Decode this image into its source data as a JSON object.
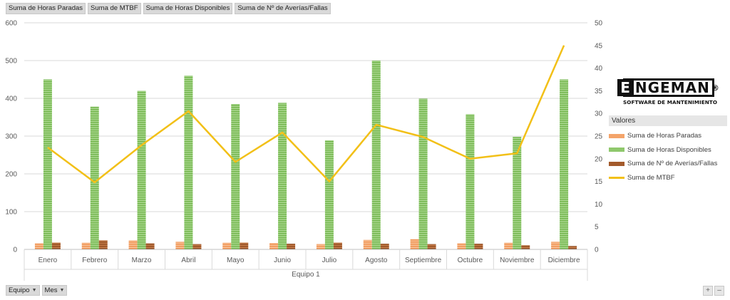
{
  "field_buttons": [
    "Suma de Horas Paradas",
    "Suma de MTBF",
    "Suma de Horas Disponibles",
    "Suma de Nº de Averías/Fallas"
  ],
  "logo": {
    "name": "ENGEMAN",
    "subtitle": "SOFTWARE DE MANTENIMIENTO"
  },
  "legend": {
    "title": "Valores",
    "items": [
      {
        "label": "Suma de Horas Paradas",
        "color": "#f4a46a",
        "kind": "bar"
      },
      {
        "label": "Suma de Horas Disponibles",
        "color": "#8fc86c",
        "kind": "bar"
      },
      {
        "label": "Suma de Nº de Averías/Fallas",
        "color": "#a35a2b",
        "kind": "bar"
      },
      {
        "label": "Suma de MTBF",
        "color": "#f2c018",
        "kind": "line"
      }
    ]
  },
  "bottom": {
    "filter1": "Equipo",
    "filter2": "Mes",
    "zoom_in": "+",
    "zoom_out": "–"
  },
  "chart_data": {
    "type": "bar",
    "categories": [
      "Enero",
      "Febrero",
      "Marzo",
      "Abril",
      "Mayo",
      "Junio",
      "Julio",
      "Agosto",
      "Septiembre",
      "Octubre",
      "Noviembre",
      "Diciembre"
    ],
    "xlabel": "Equipo 1",
    "ylim": [
      0,
      600
    ],
    "y_ticks": [
      0,
      100,
      200,
      300,
      400,
      500,
      600
    ],
    "y2lim": [
      0,
      50
    ],
    "y2_ticks": [
      0,
      5,
      10,
      15,
      20,
      25,
      30,
      35,
      40,
      45,
      50
    ],
    "grid": true,
    "legend_position": "right",
    "series": [
      {
        "name": "Suma de Horas Paradas",
        "axis": "left",
        "kind": "bar",
        "color": "#f4a46a",
        "values": [
          16,
          18,
          24,
          20,
          18,
          17,
          14,
          25,
          27,
          16,
          18,
          20
        ]
      },
      {
        "name": "Suma de Horas Disponibles",
        "axis": "left",
        "kind": "bar",
        "color": "#8fc86c",
        "values": [
          450,
          378,
          420,
          460,
          385,
          388,
          289,
          500,
          399,
          358,
          298,
          450
        ]
      },
      {
        "name": "Suma de Nº de Averías/Fallas",
        "axis": "left",
        "kind": "bar",
        "color": "#a35a2b",
        "values": [
          18,
          24,
          16,
          14,
          18,
          15,
          18,
          15,
          14,
          15,
          11,
          9
        ]
      },
      {
        "name": "Suma de MTBF",
        "axis": "right",
        "kind": "line",
        "color": "#f2c018",
        "values": [
          22.5,
          14.8,
          23,
          30.5,
          19.3,
          25.8,
          15,
          27.5,
          24.8,
          20,
          21.2,
          45
        ]
      }
    ]
  }
}
